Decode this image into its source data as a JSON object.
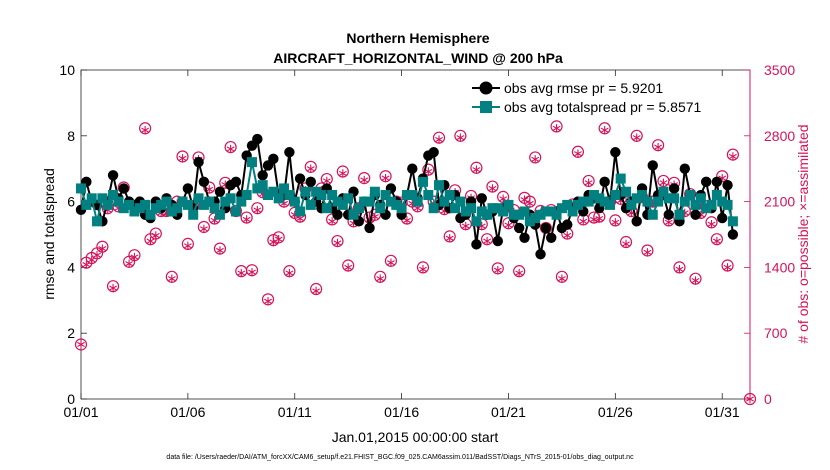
{
  "chart_data": {
    "type": "line",
    "title": "Northern Hemisphere",
    "subtitle": "AIRCRAFT_HORIZONTAL_WIND @ 200 hPa",
    "xlabel": "Jan.01,2015 00:00:00 start",
    "ylabel": "rmse and totalspread",
    "ylabel_right": "# of obs: o=possible; ×=assimilated",
    "footnote": "data file: /Users/raeder/DAI/ATM_forcXX/CAM6_setup/f.e21.FHIST_BGC.f09_025.CAM6assim.011/BadSST/Diags_NTrS_2015-01/obs_diag_output.nc",
    "xlim": [
      1,
      32.3
    ],
    "ylim": [
      0,
      10
    ],
    "ylim_right": [
      0,
      3500
    ],
    "x_ticks": [
      1,
      6,
      11,
      16,
      21,
      26,
      31
    ],
    "x_tick_labels": [
      "01/01",
      "01/06",
      "01/11",
      "01/16",
      "01/21",
      "01/26",
      "01/31"
    ],
    "y_ticks": [
      0,
      2,
      4,
      6,
      8,
      10
    ],
    "y_tick_labels": [
      "0",
      "2",
      "4",
      "6",
      "8",
      "10"
    ],
    "y_right_ticks": [
      0,
      700,
      1400,
      2100,
      2800,
      3500
    ],
    "y_right_tick_labels": [
      "0",
      "700",
      "1400",
      "2100",
      "2800",
      "3500"
    ],
    "colors": {
      "rmse": "#000000",
      "spread": "#008080",
      "obs": "#d4145a",
      "axis": "#000000"
    },
    "legend": [
      {
        "key": "rmse",
        "label": "obs avg rmse pr = 5.9201"
      },
      {
        "key": "spread",
        "label": "obs avg totalspread pr = 5.8571"
      }
    ],
    "series": [
      {
        "name": "obs avg rmse",
        "key": "rmse",
        "values": [
          5.75,
          6.6,
          6.0,
          5.9,
          5.4,
          6.0,
          6.8,
          6.1,
          6.4,
          6.0,
          5.9,
          6.0,
          5.6,
          5.5,
          6.0,
          5.8,
          6.1,
          5.9,
          5.6,
          6.0,
          6.4,
          5.8,
          7.2,
          6.6,
          6.0,
          6.0,
          6.3,
          5.8,
          6.5,
          6.6,
          6.2,
          7.4,
          7.7,
          7.9,
          6.8,
          7.1,
          7.3,
          6.2,
          6.2,
          7.5,
          6.0,
          6.7,
          6.2,
          6.6,
          6.0,
          5.8,
          6.4,
          5.8,
          5.6,
          6.1,
          5.6,
          6.3,
          5.4,
          6.0,
          5.2,
          6.2,
          5.9,
          5.6,
          6.4,
          6.0,
          5.6,
          6.2,
          7.0,
          6.1,
          6.7,
          7.4,
          7.5,
          5.9,
          6.5,
          5.8,
          6.2,
          5.5,
          5.6,
          6.0,
          4.7,
          6.1,
          5.6,
          5.7,
          4.8,
          5.8,
          5.9,
          5.5,
          5.2,
          4.9,
          5.6,
          5.3,
          4.4,
          5.2,
          4.9,
          5.7,
          5.2,
          5.3,
          5.8,
          6.0,
          5.7,
          6.2,
          6.1,
          5.8,
          6.6,
          6.0,
          7.5,
          6.2,
          5.8,
          6.0,
          5.4,
          6.4,
          5.6,
          7.1,
          6.2,
          6.2,
          5.6,
          6.4,
          5.4,
          7.0,
          6.2,
          5.6,
          6.2,
          6.6,
          5.8,
          6.6,
          5.5,
          6.5,
          5.0
        ]
      },
      {
        "name": "obs avg totalspread",
        "key": "spread",
        "values": [
          6.4,
          5.9,
          6.1,
          5.4,
          6.1,
          5.9,
          6.2,
          6.0,
          5.8,
          5.9,
          5.7,
          5.8,
          5.9,
          5.6,
          5.8,
          5.9,
          6.0,
          5.7,
          5.8,
          6.0,
          5.9,
          5.6,
          6.1,
          5.9,
          6.0,
          5.8,
          5.6,
          6.0,
          6.1,
          5.7,
          6.0,
          6.2,
          7.2,
          6.4,
          6.5,
          6.2,
          6.3,
          6.1,
          6.4,
          6.2,
          6.0,
          5.7,
          6.3,
          5.9,
          6.3,
          6.2,
          5.8,
          6.2,
          6.0,
          5.9,
          6.1,
          5.6,
          5.8,
          6.0,
          6.0,
          6.3,
          5.8,
          6.2,
          6.0,
          5.9,
          5.8,
          6.2,
          6.2,
          6.0,
          6.6,
          6.2,
          5.8,
          6.5,
          6.0,
          6.2,
          5.8,
          6.0,
          5.7,
          5.8,
          5.4,
          5.7,
          5.6,
          5.8,
          5.8,
          5.7,
          5.9,
          5.6,
          5.6,
          5.7,
          5.4,
          5.5,
          5.6,
          5.7,
          5.7,
          5.6,
          5.8,
          5.9,
          5.7,
          5.9,
          6.0,
          6.0,
          6.2,
          6.1,
          6.0,
          5.9,
          6.2,
          6.7,
          6.3,
          5.9,
          6.1,
          6.2,
          6.0,
          5.6,
          6.0,
          6.3,
          6.1,
          6.1,
          5.6,
          6.0,
          6.2,
          5.9,
          6.1,
          5.8,
          5.9,
          6.2,
          6.0,
          5.9,
          5.4
        ]
      },
      {
        "name": "# obs possible",
        "key": "obs_possible",
        "axis": "right",
        "values": [
          580,
          1450,
          1500,
          1550,
          1620,
          2030,
          1200,
          2050,
          2250,
          1460,
          1530,
          2060,
          2880,
          1700,
          1760,
          2000,
          2000,
          1300,
          2100,
          2580,
          1650,
          2050,
          2570,
          1830,
          2250,
          1920,
          1600,
          2300,
          2680,
          2000,
          1360,
          1930,
          1370,
          2030,
          2200,
          1060,
          1690,
          1720,
          2100,
          1360,
          1980,
          1940,
          2240,
          2470,
          1170,
          2240,
          2340,
          1910,
          1680,
          2420,
          1420,
          1890,
          2030,
          2350,
          1930,
          1960,
          1300,
          2370,
          1470,
          2100,
          2090,
          1920,
          2100,
          2050,
          1400,
          2440,
          2100,
          2780,
          2020,
          1730,
          2220,
          2800,
          1860,
          2160,
          2460,
          1860,
          1700,
          2260,
          1390,
          2150,
          1870,
          2010,
          1360,
          2140,
          2100,
          2570,
          2000,
          1820,
          2010,
          2900,
          1300,
          1760,
          2070,
          2630,
          1910,
          2320,
          1930,
          1940,
          2880,
          2100,
          1900,
          2130,
          1670,
          2000,
          2800,
          2150,
          1580,
          2100,
          2700,
          2320,
          1900,
          2300,
          1400,
          2000,
          2180,
          1280,
          1980,
          2050,
          1880,
          1700,
          2370,
          1420,
          2600
        ]
      },
      {
        "name": "# obs assimilated",
        "key": "obs_assimilated",
        "axis": "right",
        "values": [
          580,
          1430,
          1480,
          1530,
          1600,
          2010,
          1180,
          2030,
          2230,
          1440,
          1510,
          2040,
          2860,
          1680,
          1740,
          1980,
          1980,
          1280,
          2080,
          2560,
          1630,
          2030,
          2550,
          1810,
          2230,
          1900,
          1580,
          2280,
          2660,
          1980,
          1340,
          1910,
          1350,
          2010,
          2180,
          1040,
          1670,
          1700,
          2080,
          1340,
          1960,
          1920,
          2220,
          2450,
          1150,
          2220,
          2320,
          1890,
          1660,
          2400,
          1400,
          1870,
          2010,
          2330,
          1910,
          1940,
          1280,
          2350,
          1450,
          2080,
          2070,
          1900,
          2080,
          2030,
          1380,
          2420,
          2080,
          2760,
          2000,
          1710,
          2200,
          2780,
          1840,
          2140,
          2440,
          1840,
          1680,
          2240,
          1370,
          2130,
          1850,
          1990,
          1340,
          2120,
          2080,
          2550,
          1980,
          1800,
          1990,
          2880,
          1280,
          1740,
          2050,
          2610,
          1890,
          2300,
          1910,
          1920,
          2860,
          2080,
          1880,
          2110,
          1650,
          1980,
          2780,
          2130,
          1560,
          2080,
          2680,
          2300,
          1880,
          2280,
          1380,
          1980,
          2160,
          1260,
          1960,
          2030,
          1860,
          1680,
          2350,
          1400,
          2580
        ]
      }
    ],
    "x": [
      1.0,
      1.25,
      1.5,
      1.75,
      2.0,
      2.25,
      2.5,
      2.75,
      3.0,
      3.25,
      3.5,
      3.75,
      4.0,
      4.25,
      4.5,
      4.75,
      5.0,
      5.25,
      5.5,
      5.75,
      6.0,
      6.25,
      6.5,
      6.75,
      7.0,
      7.25,
      7.5,
      7.75,
      8.0,
      8.25,
      8.5,
      8.75,
      9.0,
      9.25,
      9.5,
      9.75,
      10.0,
      10.25,
      10.5,
      10.75,
      11.0,
      11.25,
      11.5,
      11.75,
      12.0,
      12.25,
      12.5,
      12.75,
      13.0,
      13.25,
      13.5,
      13.75,
      14.0,
      14.25,
      14.5,
      14.75,
      15.0,
      15.25,
      15.5,
      15.75,
      16.0,
      16.25,
      16.5,
      16.75,
      17.0,
      17.25,
      17.5,
      17.75,
      18.0,
      18.25,
      18.5,
      18.75,
      19.0,
      19.25,
      19.5,
      19.75,
      20.0,
      20.25,
      20.5,
      20.75,
      21.0,
      21.25,
      21.5,
      21.75,
      22.0,
      22.25,
      22.5,
      22.75,
      23.0,
      23.25,
      23.5,
      23.75,
      24.0,
      24.25,
      24.5,
      24.75,
      25.0,
      25.25,
      25.5,
      25.75,
      26.0,
      26.25,
      26.5,
      26.75,
      27.0,
      27.25,
      27.5,
      27.75,
      28.0,
      28.25,
      28.5,
      28.75,
      29.0,
      29.25,
      29.5,
      29.75,
      30.0,
      30.25,
      30.5,
      30.75,
      31.0,
      31.25,
      31.5
    ],
    "extra_right_point": {
      "x": 32.3,
      "value": 0
    }
  }
}
